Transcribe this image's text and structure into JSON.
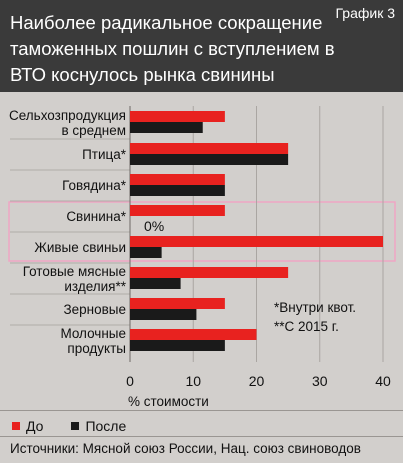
{
  "header": {
    "title": "Наиболее радикальное сокращение таможенных пошлин с вступлением в ВТО коснулось рынка свинины",
    "tag": "График 3"
  },
  "chart_data": {
    "type": "bar",
    "orientation": "horizontal",
    "categories": [
      [
        "Сельхозпродукция",
        "в среднем"
      ],
      [
        "Птица*"
      ],
      [
        "Говядина*"
      ],
      [
        "Свинина*"
      ],
      [
        "Живые свиньи"
      ],
      [
        "Готовые мясные",
        "изделия**"
      ],
      [
        "Зерновые"
      ],
      [
        "Молочные",
        "продукты"
      ]
    ],
    "series": [
      {
        "name": "До",
        "color": "#e8221f",
        "values": [
          15,
          25,
          15,
          15,
          40,
          25,
          15,
          20
        ]
      },
      {
        "name": "После",
        "color": "#1a1a1a",
        "values": [
          11.5,
          25,
          15,
          0,
          5,
          8,
          10.5,
          15
        ]
      }
    ],
    "xlabel": "% стоимости",
    "xlim": [
      0,
      40
    ],
    "xticks": [
      0,
      10,
      20,
      30,
      40
    ],
    "highlight": [
      3,
      4
    ],
    "zero_annotation": "0%",
    "notes": [
      "*Внутри квот.",
      "**С 2015 г."
    ]
  },
  "legend": {
    "before": "До",
    "after": "После"
  },
  "source": "Источники: Мясной союз России, Нац. союз свиноводов"
}
